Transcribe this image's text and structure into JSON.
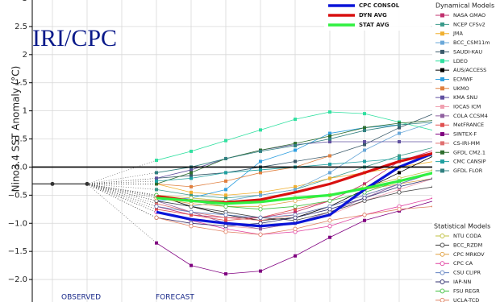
{
  "chart_data": {
    "type": "line",
    "title": "IRI/CPC",
    "y_label": "Nino3.4 SST Anomaly (°C)",
    "annotations": [
      "OBSERVED",
      "FORECAST"
    ],
    "categories": [
      null,
      null,
      null,
      null,
      null,
      null,
      null,
      null,
      null,
      null,
      null,
      null
    ],
    "ylim": [
      -2.4,
      3.0
    ],
    "yticks": [
      {
        "value": -2,
        "label": "−2.0"
      },
      {
        "value": -1.5,
        "label": "−1.5"
      },
      {
        "value": -1,
        "label": "−1.0"
      },
      {
        "value": -0.5,
        "label": "−0.5"
      },
      {
        "value": 0,
        "label": "0.0"
      },
      0.5,
      1,
      1.5,
      2,
      2.5,
      3
    ],
    "grid": true,
    "observed": {
      "color": "#333333",
      "values": [
        -0.3,
        -0.3,
        null,
        null,
        null,
        null,
        null,
        null,
        null,
        null,
        null,
        null
      ]
    },
    "series": [
      {
        "name": "CPC CONSOL",
        "color": "#0a14d8",
        "values": [
          null,
          null,
          null,
          -0.8,
          -0.93,
          -1.0,
          -1.05,
          -1.0,
          -0.85,
          -0.4,
          0.0,
          0.25
        ]
      },
      {
        "name": "DYN AVG",
        "color": "#d81010",
        "values": [
          null,
          null,
          null,
          -0.52,
          -0.6,
          -0.63,
          -0.58,
          -0.45,
          -0.3,
          -0.1,
          0.1,
          0.25
        ]
      },
      {
        "name": "STAT AVG",
        "color": "#30f040",
        "values": [
          null,
          null,
          null,
          -0.55,
          -0.6,
          -0.65,
          -0.62,
          -0.55,
          -0.5,
          -0.38,
          -0.25,
          -0.1
        ]
      }
    ],
    "dynamical_models": {
      "title": "Dynamical Models",
      "marker": "square",
      "series": [
        {
          "name": "NASA GMAO",
          "color": "#c0306e",
          "values": [
            null,
            null,
            null,
            -0.7,
            -0.85,
            -0.9,
            -0.9,
            -0.8,
            -0.6,
            -0.3,
            0.1,
            0.3
          ]
        },
        {
          "name": "NCEP CFSv2",
          "color": "#3a9a8a",
          "values": [
            null,
            null,
            null,
            -0.4,
            -0.5,
            -0.55,
            -0.5,
            -0.4,
            -0.2,
            0.0,
            0.2,
            0.35
          ]
        },
        {
          "name": "JMA",
          "color": "#f0b030",
          "values": [
            null,
            null,
            null,
            -0.3,
            -0.45,
            -0.5,
            -0.45,
            -0.35,
            -0.2,
            -0.1,
            0.0,
            0.1
          ]
        },
        {
          "name": "BCC_CSM11m",
          "color": "#6aa8d8",
          "values": [
            null,
            null,
            null,
            -0.6,
            -0.7,
            -0.6,
            -0.5,
            -0.4,
            -0.1,
            0.3,
            0.6,
            0.8
          ]
        },
        {
          "name": "SAUDI-KAU",
          "color": "#3a5a6a",
          "values": [
            null,
            null,
            null,
            -0.2,
            -0.15,
            -0.1,
            0.0,
            0.1,
            0.2,
            0.4,
            0.7,
            0.95
          ]
        },
        {
          "name": "LDEO",
          "color": "#30e0a0",
          "values": [
            null,
            null,
            null,
            0.12,
            0.28,
            0.47,
            0.66,
            0.85,
            0.98,
            0.95,
            0.8,
            0.65
          ]
        },
        {
          "name": "AUS/ACCESS",
          "color": "#000000",
          "values": [
            null,
            null,
            null,
            -0.5,
            -0.7,
            -0.85,
            -0.95,
            -0.9,
            -0.7,
            -0.4,
            -0.1,
            0.2
          ]
        },
        {
          "name": "ECMWF",
          "color": "#30a0e0",
          "values": [
            null,
            null,
            null,
            -0.6,
            -0.55,
            -0.4,
            0.1,
            0.3,
            0.6,
            0.7,
            0.75,
            null
          ]
        },
        {
          "name": "UKMO",
          "color": "#e08040",
          "values": [
            null,
            null,
            null,
            -0.3,
            -0.35,
            -0.25,
            -0.1,
            0.0,
            0.2,
            null,
            null,
            null
          ]
        },
        {
          "name": "KMA SNU",
          "color": "#6050a0",
          "values": [
            null,
            null,
            null,
            -0.2,
            -0.05,
            0.15,
            0.3,
            0.4,
            0.45,
            0.45,
            0.45,
            0.45
          ]
        },
        {
          "name": "IOCAS ICM",
          "color": "#f0a0b0",
          "values": [
            null,
            null,
            null,
            -0.9,
            -1.0,
            -1.05,
            -1.1,
            -1.0,
            -0.85,
            -0.6,
            -0.4,
            -0.2
          ]
        },
        {
          "name": "COLA CCSM4",
          "color": "#9060a0",
          "values": [
            null,
            null,
            null,
            -0.6,
            -0.8,
            -1.0,
            -1.1,
            -1.0,
            -0.8,
            -0.55,
            -0.3,
            -0.1
          ]
        },
        {
          "name": "MetFRANCE",
          "color": "#e05050",
          "values": [
            null,
            null,
            null,
            -0.75,
            -0.85,
            -0.95,
            -0.9,
            -0.75,
            -0.6,
            null,
            null,
            null
          ]
        },
        {
          "name": "SINTEX-F",
          "color": "#800080",
          "values": [
            null,
            null,
            null,
            -1.35,
            -1.75,
            -1.9,
            -1.85,
            -1.58,
            -1.25,
            -0.95,
            -0.78,
            -0.6
          ]
        },
        {
          "name": "CS-IRI-MM",
          "color": "#e07070",
          "values": [
            null,
            null,
            null,
            -0.65,
            -0.8,
            -0.9,
            -0.95,
            -0.85,
            -0.7,
            -0.5,
            -0.3,
            -0.1
          ]
        },
        {
          "name": "GFDL CM2.1",
          "color": "#2e6e2e",
          "values": [
            null,
            null,
            null,
            -0.3,
            -0.1,
            0.15,
            0.3,
            0.42,
            0.55,
            0.7,
            0.78,
            0.83
          ]
        },
        {
          "name": "CMC CANSIP",
          "color": "#20a0a0",
          "values": [
            null,
            null,
            null,
            -0.25,
            -0.2,
            -0.1,
            -0.05,
            0.0,
            0.05,
            0.1,
            0.15,
            0.2
          ]
        },
        {
          "name": "GFDL FLOR",
          "color": "#308080",
          "values": [
            null,
            null,
            null,
            -0.1,
            0.0,
            0.15,
            0.28,
            0.38,
            0.5,
            0.65,
            0.75,
            0.8
          ]
        }
      ]
    },
    "statistical_models": {
      "title": "Statistical Models",
      "marker": "circle",
      "series": [
        {
          "name": "NTU CODA",
          "color": "#c0c040",
          "values": [
            null,
            null,
            null,
            -0.5,
            -0.55,
            -0.6,
            -0.6,
            -0.55,
            -0.5,
            -0.35,
            -0.2,
            -0.05
          ]
        },
        {
          "name": "BCC_RZDM",
          "color": "#404040",
          "values": [
            null,
            null,
            null,
            -0.6,
            -0.7,
            -0.8,
            -0.9,
            -0.95,
            -0.8,
            -0.6,
            -0.45,
            -0.35
          ]
        },
        {
          "name": "CPC MRKOV",
          "color": "#e0a040",
          "values": [
            null,
            null,
            null,
            -0.55,
            -0.65,
            -0.7,
            -0.7,
            -0.6,
            -0.5,
            -0.4,
            -0.3,
            -0.2
          ]
        },
        {
          "name": "CPC CA",
          "color": "#e040a0",
          "values": [
            null,
            null,
            null,
            -0.8,
            -0.95,
            -1.1,
            -1.2,
            -1.15,
            -1.05,
            -0.85,
            -0.7,
            -0.55
          ]
        },
        {
          "name": "CSU CLIPR",
          "color": "#6080c0",
          "values": [
            null,
            null,
            null,
            -0.7,
            -0.8,
            -0.85,
            -0.9,
            -0.85,
            -0.7,
            -0.5,
            -0.3,
            -0.1
          ]
        },
        {
          "name": "IAP-NN",
          "color": "#303070",
          "values": [
            null,
            null,
            null,
            -0.9,
            -1.0,
            -1.05,
            -1.0,
            -0.9,
            -0.75,
            -0.55,
            -0.35,
            -0.2
          ]
        },
        {
          "name": "FSU REGR",
          "color": "#40c040",
          "values": [
            null,
            null,
            null,
            -0.5,
            -0.6,
            -0.7,
            -0.75,
            -0.7,
            -0.6,
            -0.45,
            -0.25,
            -0.1
          ]
        },
        {
          "name": "UCLA-TCD",
          "color": "#e08060",
          "values": [
            null,
            null,
            null,
            -0.9,
            -1.05,
            -1.15,
            -1.2,
            -1.1,
            -0.95,
            -0.85,
            -0.75,
            -0.7
          ]
        }
      ]
    }
  }
}
